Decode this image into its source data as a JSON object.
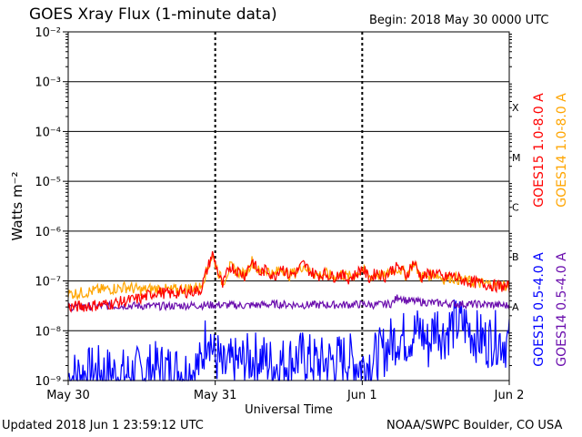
{
  "header": {
    "title": "GOES Xray Flux (1-minute data)",
    "begin": "Begin:  2018 May 30 0000 UTC"
  },
  "footer": {
    "updated": "Updated 2018 Jun  1 23:59:12 UTC",
    "credit": "NOAA/SWPC Boulder, CO USA"
  },
  "colors": {
    "goes15_long": "#ff0000",
    "goes14_long": "#ffa500",
    "goes15_short": "#0000ff",
    "goes14_short": "#6a0dad",
    "background": "#ffffff",
    "axes": "#000000"
  },
  "chart_data": {
    "type": "line",
    "title": "GOES Xray Flux (1-minute data)",
    "xlabel": "Universal Time",
    "ylabel": "Watts m⁻²",
    "yscale": "log",
    "ylim": [
      1e-09,
      0.01
    ],
    "xlim_days": [
      0,
      3
    ],
    "y_tick_labels": [
      "10⁻⁹",
      "10⁻⁸",
      "10⁻⁷",
      "10⁻⁶",
      "10⁻⁵",
      "10⁻⁴",
      "10⁻³",
      "10⁻²"
    ],
    "x_ticks": [
      {
        "day": 0,
        "label": "May 30"
      },
      {
        "day": 1,
        "label": "May 31"
      },
      {
        "day": 2,
        "label": "Jun 1"
      },
      {
        "day": 3,
        "label": "Jun 2"
      }
    ],
    "flare_classes": [
      {
        "label": "A",
        "exp": -8
      },
      {
        "label": "B",
        "exp": -7
      },
      {
        "label": "C",
        "exp": -6
      },
      {
        "label": "M",
        "exp": -5
      },
      {
        "label": "X",
        "exp": -4
      }
    ],
    "grid": "horizontal lines at each decade above 1e-8, dashed lines at day boundaries",
    "series": [
      {
        "name": "GOES15 1.0-8.0 A",
        "color": "#ff0000",
        "x": [
          0,
          0.1,
          0.2,
          0.3,
          0.4,
          0.5,
          0.6,
          0.7,
          0.8,
          0.9,
          0.98,
          1.05,
          1.1,
          1.2,
          1.25,
          1.3,
          1.35,
          1.4,
          1.45,
          1.5,
          1.55,
          1.6,
          1.65,
          1.7,
          1.75,
          1.8,
          1.85,
          1.9,
          1.95,
          2.0,
          2.05,
          2.1,
          2.15,
          2.2,
          2.25,
          2.3,
          2.35,
          2.4,
          2.5,
          2.55,
          2.6,
          2.7,
          2.8,
          2.9,
          3.0
        ],
        "y": [
          3e-08,
          3.1e-08,
          3.3e-08,
          3.5e-08,
          4e-08,
          4.5e-08,
          6e-08,
          5.5e-08,
          6e-08,
          6.5e-08,
          3.5e-07,
          8e-08,
          2e-07,
          1.3e-07,
          2.6e-07,
          1.4e-07,
          1.7e-07,
          1.2e-07,
          2e-07,
          1.3e-07,
          1.5e-07,
          2.2e-07,
          1.5e-07,
          1.3e-07,
          1.4e-07,
          1.2e-07,
          1.4e-07,
          1.1e-07,
          1.3e-07,
          1.8e-07,
          1.1e-07,
          1.5e-07,
          1.2e-07,
          1.7e-07,
          1.9e-07,
          1.3e-07,
          2.4e-07,
          1.2e-07,
          1.5e-07,
          1.1e-07,
          1.3e-07,
          1e-07,
          9e-08,
          8e-08,
          7.5e-08
        ]
      },
      {
        "name": "GOES14 1.0-8.0 A",
        "color": "#ffa500",
        "x": [
          0,
          0.1,
          0.2,
          0.3,
          0.4,
          0.5,
          0.6,
          0.7,
          0.8,
          0.9,
          0.98,
          1.05,
          1.1,
          1.2,
          1.25,
          1.3,
          1.35,
          1.4,
          1.45,
          1.5,
          1.55,
          1.6,
          1.65,
          1.7,
          1.75,
          1.8,
          1.85,
          1.9,
          1.95,
          2.0,
          2.05,
          2.1,
          2.15,
          2.2,
          2.25,
          2.3,
          2.35,
          2.4,
          2.5,
          2.55,
          2.6,
          2.7,
          2.8,
          2.9,
          3.0
        ],
        "y": [
          5.5e-08,
          5.8e-08,
          6.5e-08,
          7e-08,
          7.5e-08,
          6.5e-08,
          7e-08,
          6.5e-08,
          7e-08,
          7.5e-08,
          3.2e-07,
          9e-08,
          1.9e-07,
          1.3e-07,
          2.5e-07,
          1.5e-07,
          1.7e-07,
          1.3e-07,
          1.9e-07,
          1.3e-07,
          1.5e-07,
          2.1e-07,
          1.5e-07,
          1.3e-07,
          1.4e-07,
          1.2e-07,
          1.4e-07,
          1.2e-07,
          1.3e-07,
          1.7e-07,
          1.2e-07,
          1.4e-07,
          1.2e-07,
          1.6e-07,
          1.8e-07,
          1.3e-07,
          2.3e-07,
          1.2e-07,
          1.4e-07,
          1.1e-07,
          1.2e-07,
          1e-07,
          9e-08,
          8.5e-08,
          8e-08
        ]
      },
      {
        "name": "GOES14 0.5-4.0 A",
        "color": "#6a0dad",
        "x": [
          0,
          0.2,
          0.4,
          0.6,
          0.8,
          1.0,
          1.2,
          1.4,
          1.6,
          1.8,
          2.0,
          2.1,
          2.2,
          2.25,
          2.3,
          2.4,
          2.5,
          2.6,
          2.7,
          2.8,
          2.9,
          3.0
        ],
        "y": [
          3e-08,
          3.1e-08,
          3.2e-08,
          3.1e-08,
          3.2e-08,
          3.3e-08,
          3.2e-08,
          3.4e-08,
          3.3e-08,
          3.3e-08,
          3.4e-08,
          3.3e-08,
          3.5e-08,
          5e-08,
          4e-08,
          3.8e-08,
          3.6e-08,
          3.5e-08,
          3.4e-08,
          3.4e-08,
          3.3e-08,
          3.2e-08
        ]
      },
      {
        "name": "GOES15 0.5-4.0 A",
        "color": "#0000ff",
        "x": [
          0,
          0.2,
          0.4,
          0.6,
          0.8,
          0.9,
          0.95,
          1.0,
          1.02,
          1.05,
          1.1,
          1.2,
          1.3,
          1.4,
          1.5,
          1.6,
          1.7,
          1.8,
          1.9,
          2.0,
          2.1,
          2.15,
          2.2,
          2.25,
          2.3,
          2.35,
          2.4,
          2.45,
          2.5,
          2.55,
          2.6,
          2.65,
          2.7,
          2.75,
          2.8,
          2.85,
          2.9,
          2.95,
          3.0
        ],
        "y": [
          1.2e-09,
          1.5e-09,
          1.3e-09,
          1.8e-09,
          1.5e-09,
          2e-09,
          1.2e-08,
          2.5e-09,
          3e-09,
          1.5e-09,
          2e-09,
          2.5e-09,
          3e-09,
          2e-09,
          2.5e-09,
          3e-09,
          2.2e-09,
          2.5e-09,
          2.8e-09,
          2e-09,
          3e-09,
          4e-09,
          6e-09,
          8e-09,
          7e-09,
          9e-09,
          1e-08,
          5e-09,
          1.5e-08,
          8e-09,
          1.2e-08,
          1.4e-08,
          1.3e-08,
          9e-09,
          7e-09,
          6e-09,
          7.5e-09,
          6.5e-09,
          5.5e-09
        ]
      }
    ],
    "legend": [
      {
        "label": "GOES15 1.0-8.0 A",
        "color": "#ff0000"
      },
      {
        "label": "GOES14 1.0-8.0 A",
        "color": "#ffa500"
      },
      {
        "label": "GOES15 0.5-4.0 A",
        "color": "#0000ff"
      },
      {
        "label": "GOES14 0.5-4.0 A",
        "color": "#6a0dad"
      }
    ],
    "legend_placement": "right, rotated vertical"
  }
}
